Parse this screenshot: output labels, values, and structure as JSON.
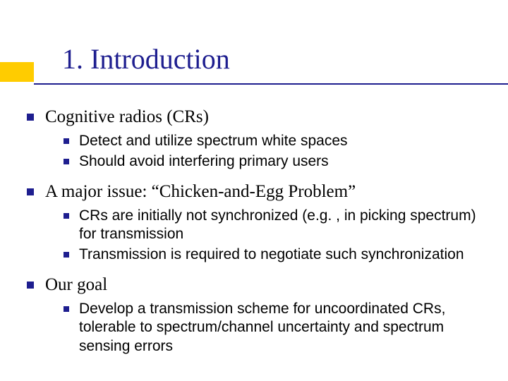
{
  "colors": {
    "accent": "#ffcc00",
    "title": "#1e1e8f",
    "underline": "#1e1e8f",
    "bullet": "#1e1e8f",
    "body_text": "#000000",
    "background": "#ffffff"
  },
  "typography": {
    "title_fontsize": 40,
    "l1_fontsize": 25,
    "l2_fontsize": 21,
    "title_font": "Times New Roman",
    "l1_font": "Times New Roman",
    "l2_font": "Arial"
  },
  "title": "1.  Introduction",
  "sections": [
    {
      "heading": "Cognitive radios (CRs)",
      "items": [
        "Detect and utilize spectrum white spaces",
        "Should avoid interfering primary users"
      ]
    },
    {
      "heading": "A major issue: “Chicken-and-Egg Problem”",
      "items": [
        "CRs are initially not synchronized (e.g. , in picking spectrum) for transmission",
        "Transmission is required to negotiate such synchronization"
      ]
    },
    {
      "heading": "Our goal",
      "items": [
        "Develop a transmission scheme for uncoordinated CRs, tolerable to spectrum/channel uncertainty and spectrum sensing errors"
      ]
    }
  ]
}
